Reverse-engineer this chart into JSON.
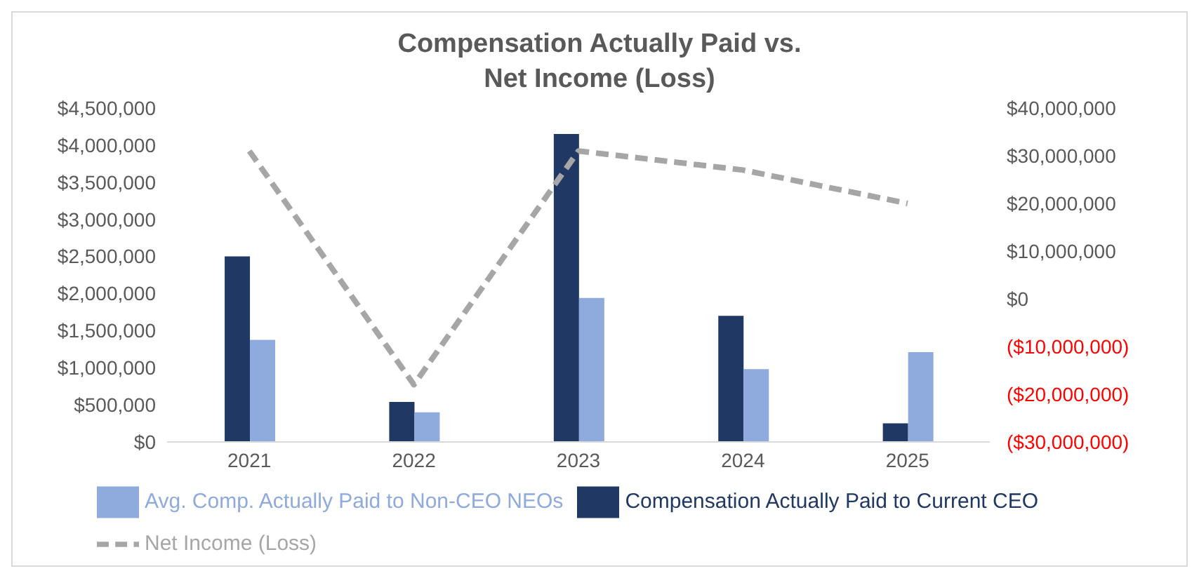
{
  "chart_data": {
    "type": "bar",
    "title": "Compensation Actually Paid vs. Net Income (Loss)",
    "categories": [
      "2021",
      "2022",
      "2023",
      "2024",
      "2025"
    ],
    "series": [
      {
        "name": "Compensation Actually Paid to Current CEO",
        "color": "#203864",
        "values": [
          2500000,
          540000,
          4150000,
          1700000,
          250000
        ]
      },
      {
        "name": "Avg. Comp. Actually Paid to Non-CEO NEOs",
        "color": "#8faadc",
        "values": [
          1375000,
          400000,
          1940000,
          980000,
          1210000
        ]
      },
      {
        "name": "Net Income (Loss)",
        "type": "line",
        "axis": "y2",
        "color": "#a6a6a6",
        "line_style": "dashed",
        "marker": "none",
        "values": [
          31000000,
          -18000000,
          31000000,
          27000000,
          20000000
        ]
      }
    ],
    "ylim": [
      0,
      4500000
    ],
    "yticks": [
      {
        "value": 0,
        "label": "$0"
      },
      {
        "value": 500000,
        "label": "$500,000"
      },
      {
        "value": 1000000,
        "label": "$1,000,000"
      },
      {
        "value": 1500000,
        "label": "$1,500,000"
      },
      {
        "value": 2000000,
        "label": "$2,000,000"
      },
      {
        "value": 2500000,
        "label": "$2,500,000"
      },
      {
        "value": 3000000,
        "label": "$3,000,000"
      },
      {
        "value": 3500000,
        "label": "$3,500,000"
      },
      {
        "value": 4000000,
        "label": "$4,000,000"
      },
      {
        "value": 4500000,
        "label": "$4,500,000"
      }
    ],
    "y2lim": [
      -30000000,
      40000000
    ],
    "y2ticks": [
      {
        "value": -30000000,
        "label": "($30,000,000)"
      },
      {
        "value": -20000000,
        "label": "($20,000,000)"
      },
      {
        "value": -10000000,
        "label": "($10,000,000)"
      },
      {
        "value": 0,
        "label": "$0"
      },
      {
        "value": 10000000,
        "label": "$10,000,000"
      },
      {
        "value": 20000000,
        "label": "$20,000,000"
      },
      {
        "value": 30000000,
        "label": "$30,000,000"
      },
      {
        "value": 40000000,
        "label": "$40,000,000"
      }
    ],
    "grid": false,
    "legend": "bottom"
  }
}
